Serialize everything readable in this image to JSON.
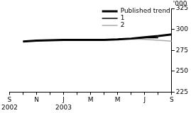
{
  "chart_data": {
    "type": "line",
    "y_label": "'000",
    "categories": [
      [
        "S",
        "2002"
      ],
      null,
      "N",
      null,
      [
        "J",
        "2003"
      ],
      null,
      "M",
      null,
      "M",
      null,
      "J",
      null,
      "S"
    ],
    "series": [
      {
        "name": "Published trend",
        "color": "#000000",
        "values": [
          null,
          285.5,
          286.5,
          287,
          287.5,
          287.5,
          287.5,
          287.5,
          288,
          289,
          290.5,
          292,
          294
        ]
      },
      {
        "name": "1",
        "color": "#000000",
        "values": [
          null,
          285.5,
          286.5,
          287,
          287.5,
          287.5,
          287.5,
          287.5,
          288,
          289,
          290,
          290,
          null
        ]
      },
      {
        "name": "2",
        "color": "#aaaaaa",
        "values": [
          null,
          285.5,
          286.5,
          287,
          287.5,
          287.5,
          287.5,
          287.5,
          288,
          288.5,
          288,
          287,
          286
        ]
      }
    ],
    "ylim": [
      225,
      325
    ],
    "yticks": [
      225,
      250,
      275,
      300,
      325
    ],
    "grid": false,
    "legend": "upper right"
  }
}
